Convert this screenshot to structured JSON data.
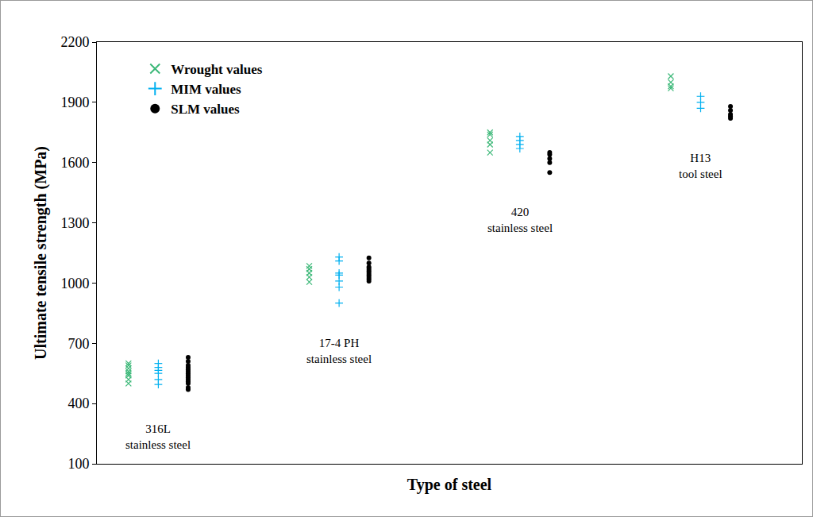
{
  "chart_data": {
    "type": "scatter",
    "x_label": "Type of steel",
    "y_label": "Ultimate tensile strength (MPa)",
    "categories": [
      "316L\nstainless steel",
      "17-4 PH\nstainless steel",
      "420\nstainless steel",
      "H13\ntool steel"
    ],
    "series": [
      {
        "name": "Wrought values",
        "color": "#3cb878",
        "marker": "x",
        "values": [
          [
            500,
            520,
            540,
            550,
            560,
            575,
            590,
            600
          ],
          [
            1005,
            1030,
            1050,
            1070,
            1085
          ],
          [
            1650,
            1690,
            1710,
            1740,
            1750
          ],
          [
            1970,
            1980,
            2000,
            2030
          ]
        ]
      },
      {
        "name": "MIM values",
        "color": "#00b0f0",
        "marker": "cross",
        "values": [
          [
            495,
            520,
            550,
            565,
            580,
            600
          ],
          [
            900,
            980,
            1010,
            1040,
            1050,
            1110,
            1130
          ],
          [
            1670,
            1690,
            1710,
            1730
          ],
          [
            1870,
            1900,
            1930
          ]
        ]
      },
      {
        "name": "SLM values",
        "color": "#000000",
        "marker": "circle",
        "values": [
          [
            470,
            480,
            500,
            510,
            520,
            530,
            540,
            550,
            560,
            570,
            580,
            590,
            610,
            630
          ],
          [
            1010,
            1020,
            1030,
            1040,
            1050,
            1060,
            1070,
            1080,
            1100,
            1125
          ],
          [
            1550,
            1600,
            1620,
            1640,
            1650
          ],
          [
            1820,
            1830,
            1840,
            1860,
            1880
          ]
        ]
      }
    ],
    "ylim": [
      100,
      2200
    ],
    "yticks": [
      100,
      400,
      700,
      1000,
      1300,
      1600,
      1900,
      2200
    ],
    "grid": false,
    "legend": "upper left",
    "tick_labels": "y"
  }
}
